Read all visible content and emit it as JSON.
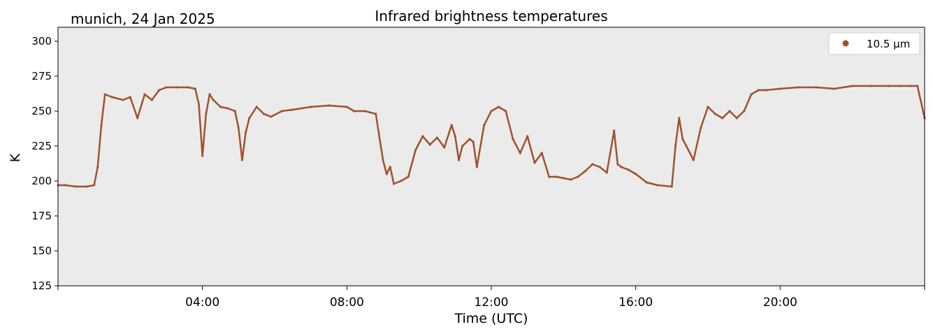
{
  "header": {
    "location_date": "munich, 24 Jan 2025"
  },
  "chart_data": {
    "type": "scatter",
    "title": "Infrared brightness temperatures",
    "xlabel": "Time (UTC)",
    "ylabel": "K",
    "xlim_hours": [
      0,
      24
    ],
    "ylim": [
      125,
      310
    ],
    "yticks": [
      125,
      150,
      175,
      200,
      225,
      250,
      275,
      300
    ],
    "xticks": [
      {
        "hour": 4,
        "label": "04:00"
      },
      {
        "hour": 8,
        "label": "08:00"
      },
      {
        "hour": 12,
        "label": "12:00"
      },
      {
        "hour": 16,
        "label": "16:00"
      },
      {
        "hour": 20,
        "label": "20:00"
      }
    ],
    "grid": false,
    "legend_position": "top-right",
    "background_color": "#ebebeb",
    "series": [
      {
        "name": "10.5 µm",
        "color": "#a0522d",
        "x_hours": [
          0.0,
          0.2,
          0.5,
          0.8,
          1.0,
          1.1,
          1.2,
          1.3,
          1.5,
          1.8,
          2.0,
          2.2,
          2.4,
          2.6,
          2.8,
          3.0,
          3.3,
          3.6,
          3.8,
          3.9,
          4.0,
          4.1,
          4.2,
          4.3,
          4.5,
          4.7,
          4.9,
          5.0,
          5.1,
          5.2,
          5.3,
          5.5,
          5.7,
          5.9,
          6.2,
          6.5,
          7.0,
          7.5,
          8.0,
          8.2,
          8.5,
          8.8,
          9.0,
          9.1,
          9.2,
          9.3,
          9.5,
          9.7,
          9.9,
          10.1,
          10.3,
          10.5,
          10.7,
          10.9,
          11.0,
          11.1,
          11.2,
          11.4,
          11.5,
          11.6,
          11.8,
          12.0,
          12.2,
          12.4,
          12.6,
          12.8,
          13.0,
          13.2,
          13.4,
          13.6,
          13.8,
          14.0,
          14.2,
          14.4,
          14.6,
          14.8,
          15.0,
          15.2,
          15.4,
          15.5,
          15.6,
          15.8,
          16.0,
          16.3,
          16.6,
          17.0,
          17.1,
          17.2,
          17.3,
          17.4,
          17.6,
          17.8,
          18.0,
          18.2,
          18.4,
          18.6,
          18.8,
          19.0,
          19.2,
          19.4,
          19.6,
          20.0,
          20.5,
          21.0,
          21.5,
          22.0,
          22.5,
          23.0,
          23.3,
          23.6,
          23.8,
          24.0
        ],
        "y": [
          197,
          197,
          196,
          196,
          197,
          210,
          240,
          262,
          260,
          258,
          260,
          245,
          262,
          258,
          265,
          267,
          267,
          267,
          266,
          255,
          218,
          248,
          262,
          258,
          253,
          252,
          250,
          238,
          215,
          235,
          245,
          253,
          248,
          246,
          250,
          251,
          253,
          254,
          253,
          250,
          250,
          248,
          215,
          205,
          210,
          198,
          200,
          203,
          222,
          232,
          226,
          231,
          224,
          240,
          232,
          215,
          225,
          230,
          228,
          210,
          240,
          250,
          253,
          250,
          230,
          220,
          232,
          213,
          220,
          203,
          203,
          202,
          201,
          203,
          207,
          212,
          210,
          206,
          236,
          212,
          210,
          208,
          205,
          199,
          197,
          196,
          225,
          245,
          230,
          225,
          215,
          238,
          253,
          248,
          245,
          250,
          245,
          250,
          262,
          265,
          265,
          266,
          267,
          267,
          266,
          268,
          268,
          268,
          268,
          268,
          268,
          245
        ]
      }
    ]
  }
}
